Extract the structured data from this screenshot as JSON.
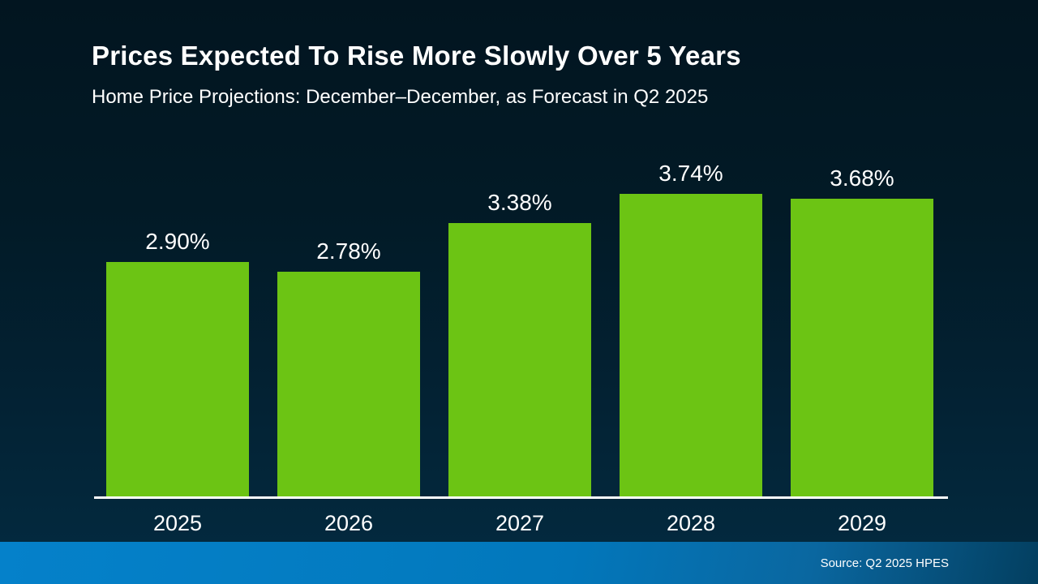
{
  "slide": {
    "title": "Prices Expected To Rise More Slowly Over 5 Years",
    "subtitle": "Home Price Projections: December–December, as Forecast in Q2 2025",
    "source": "Source: Q2 2025 HPES"
  },
  "colors": {
    "bar_green": "#6cc414",
    "background_top": "#021520",
    "background_bottom": "#032b41",
    "footer_gradient_left": "#0581ca",
    "footer_gradient_right": "#033f60",
    "axis_line": "#ffffff",
    "text": "#ffffff"
  },
  "chart_data": {
    "type": "bar",
    "categories": [
      "2025",
      "2026",
      "2027",
      "2028",
      "2029"
    ],
    "values": [
      2.9,
      2.78,
      3.38,
      3.74,
      3.68
    ],
    "labels": [
      "2.90%",
      "2.78%",
      "3.38%",
      "3.74%",
      "3.68%"
    ],
    "title": "Prices Expected To Rise More Slowly Over 5 Years",
    "subtitle": "Home Price Projections: December–December, as Forecast in Q2 2025",
    "xlabel": "",
    "ylabel": "",
    "ylim": [
      0,
      4
    ],
    "grid": false,
    "legend": false,
    "bar_color": "#6cc414",
    "annotation_source": "Source: Q2 2025 HPES"
  }
}
